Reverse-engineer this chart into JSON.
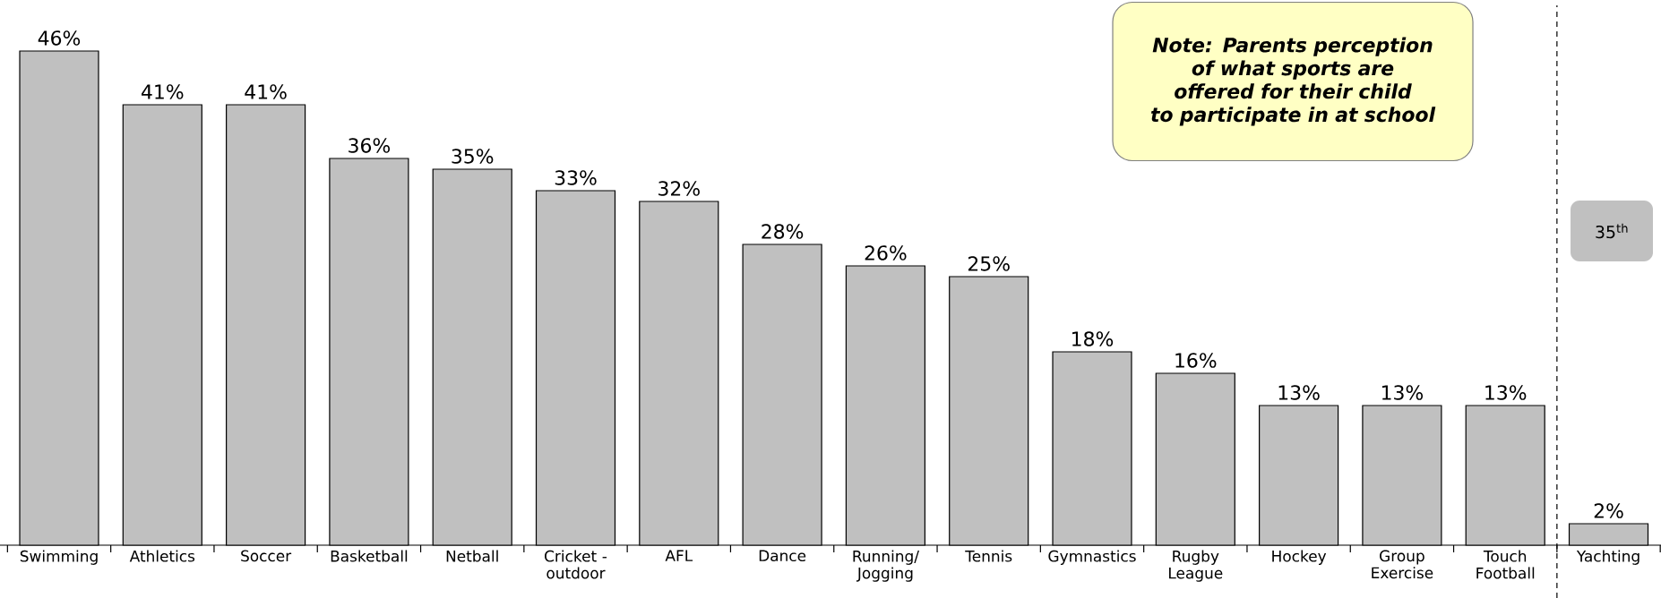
{
  "chart_data": {
    "type": "bar",
    "categories": [
      "Swimming",
      "Athletics",
      "Soccer",
      "Basketball",
      "Netball",
      "Cricket - outdoor",
      "AFL",
      "Dance",
      "Running/ Jogging",
      "Tennis",
      "Gymnastics",
      "Rugby League",
      "Hockey",
      "Group Exercise",
      "Touch Football",
      "Yachting"
    ],
    "values": [
      46,
      41,
      41,
      36,
      35,
      33,
      32,
      28,
      26,
      25,
      18,
      16,
      13,
      13,
      13,
      2
    ],
    "value_labels": [
      "46%",
      "41%",
      "41%",
      "36%",
      "35%",
      "33%",
      "32%",
      "28%",
      "26%",
      "25%",
      "18%",
      "16%",
      "13%",
      "13%",
      "13%",
      "2%"
    ],
    "color": "#c0c0c0",
    "annotations": [
      "Note: Parents perception of what sports are offered for their child to participate in at school",
      "35$^{th}$"
    ]
  }
}
